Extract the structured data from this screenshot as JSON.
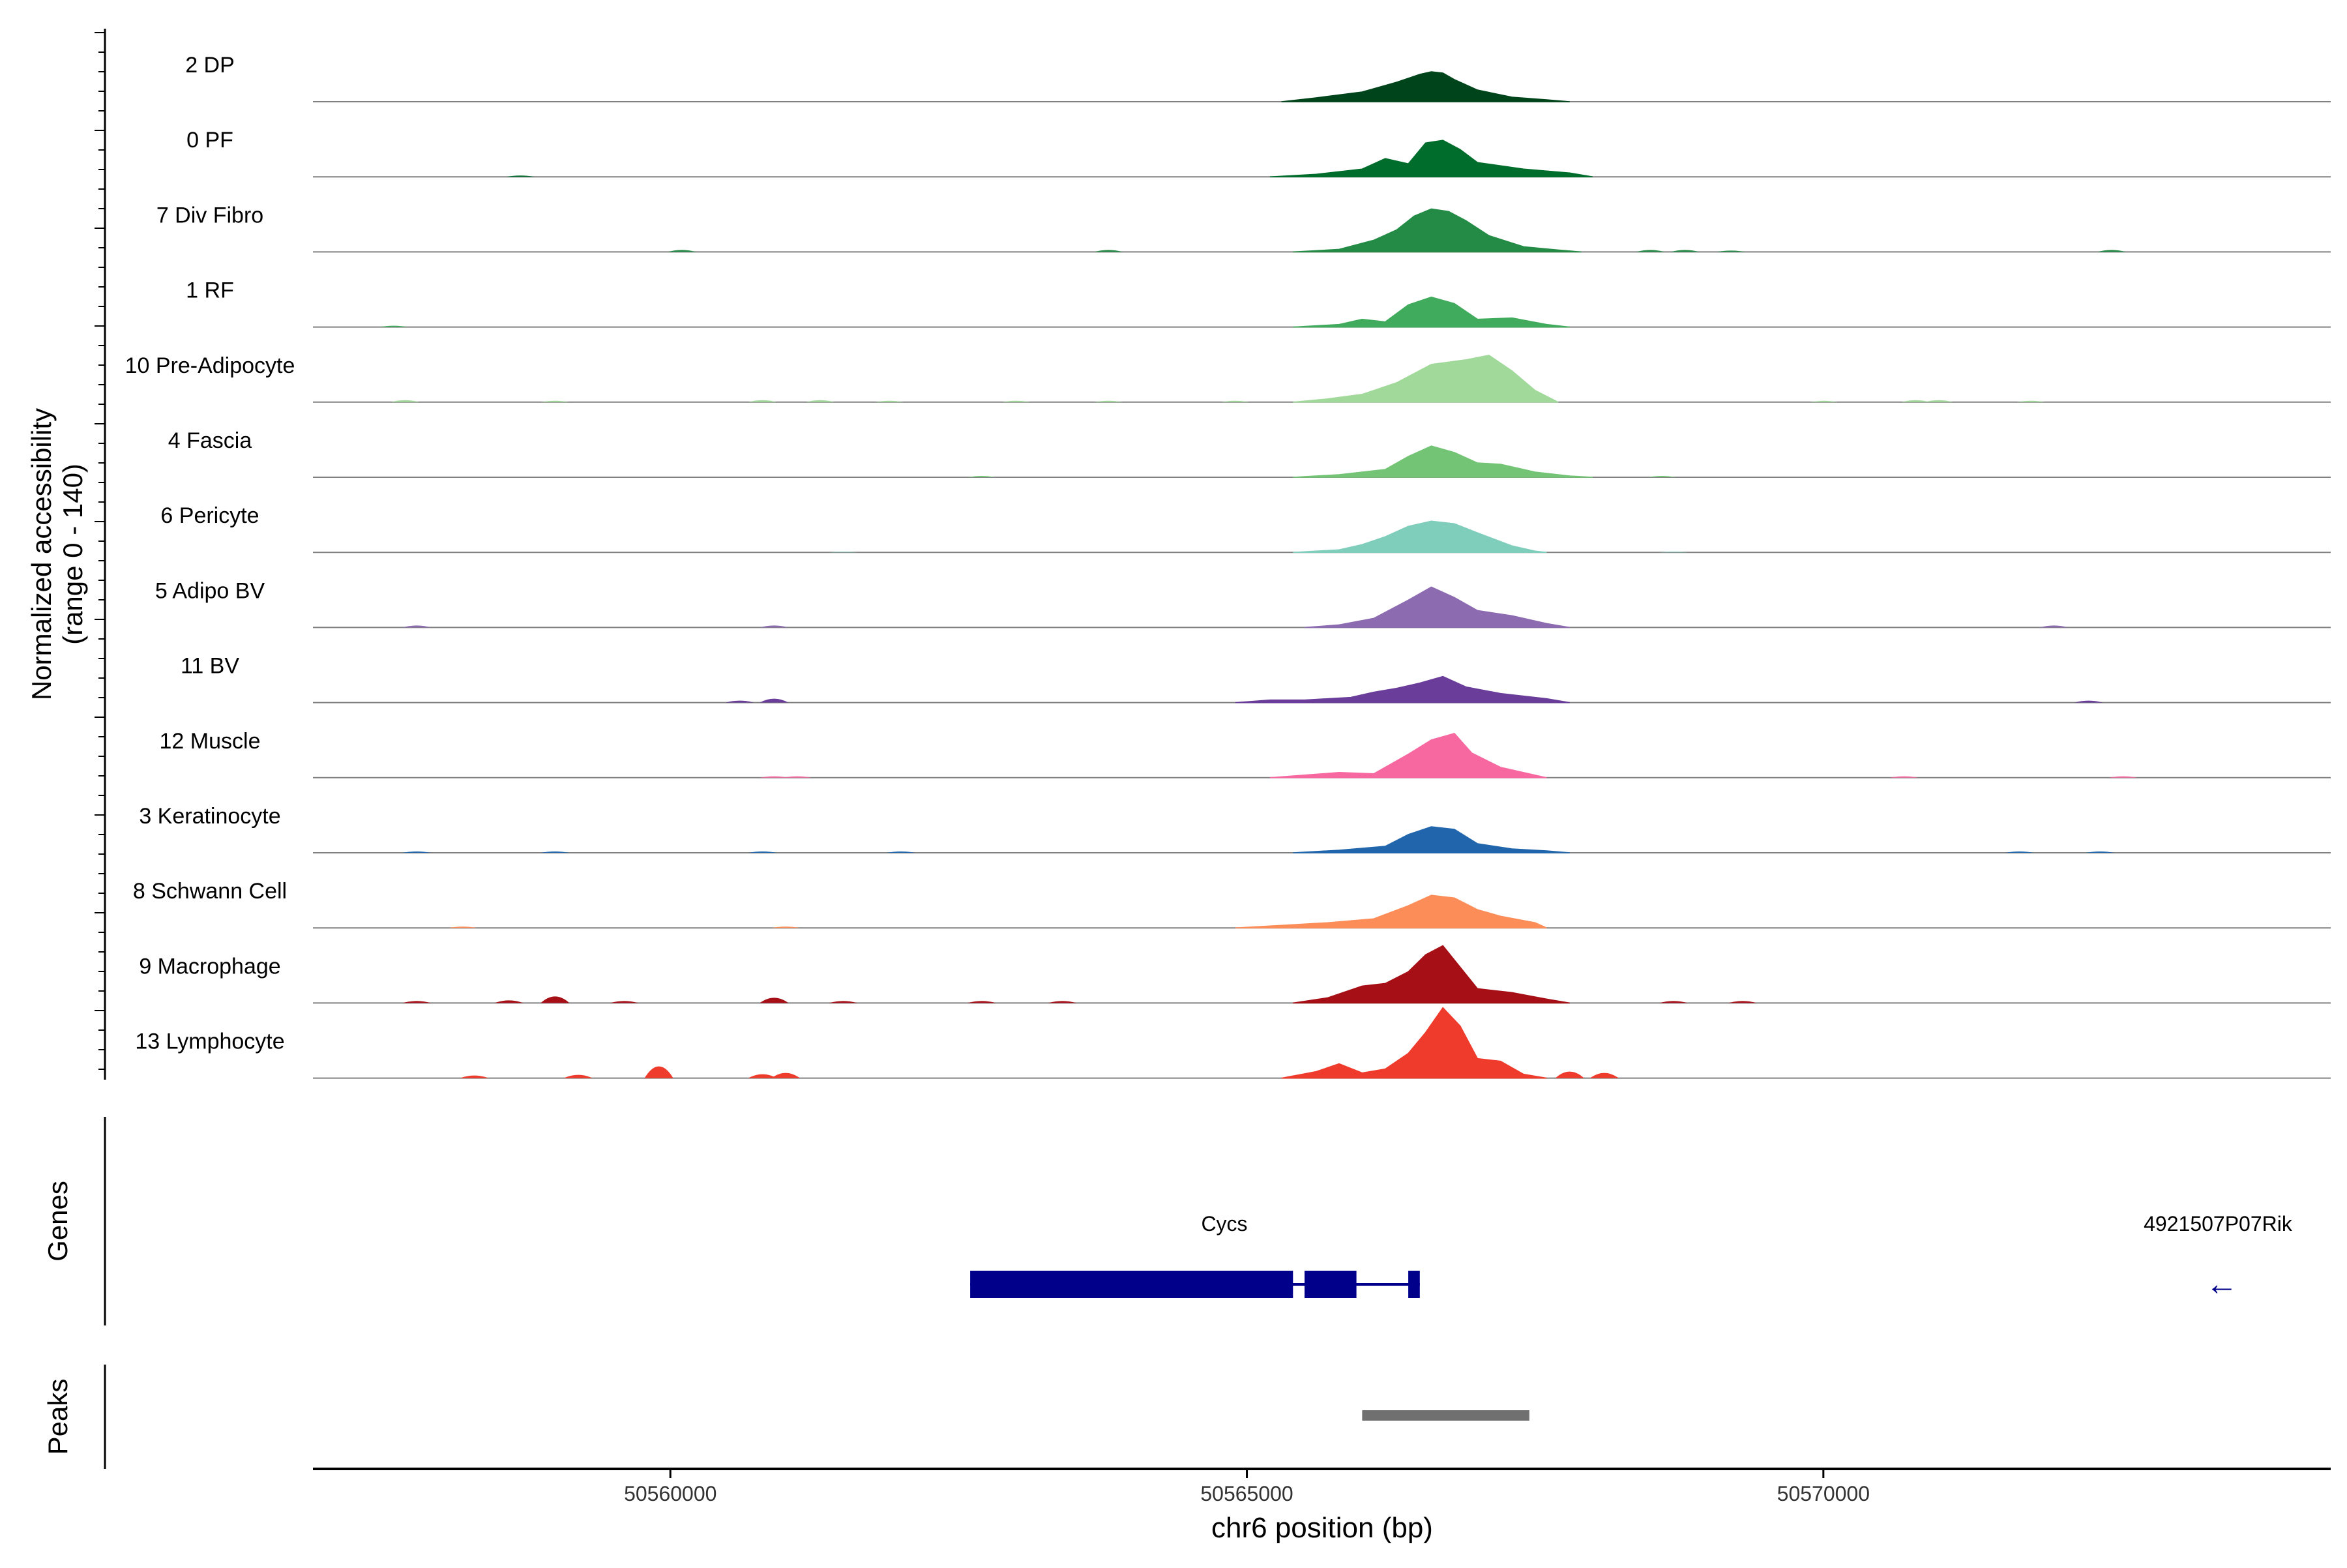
{
  "chart_data": {
    "type": "area",
    "title": "",
    "y_axis_label_line1": "Normalized accessibility",
    "y_axis_label_line2": "(range 0 - 140)",
    "y_range": [
      0,
      140
    ],
    "xlabel": "chr6 position (bp)",
    "x_range": [
      50556900,
      50574400
    ],
    "x_ticks": [
      {
        "value": 50560000,
        "label": "50560000"
      },
      {
        "value": 50565000,
        "label": "50565000"
      },
      {
        "value": 50570000,
        "label": "50570000"
      }
    ],
    "tracks": [
      {
        "name": "2 DP",
        "color": "#00441b",
        "peak": [
          [
            50565300,
            0
          ],
          [
            50565600,
            6
          ],
          [
            50566000,
            15
          ],
          [
            50566300,
            30
          ],
          [
            50566500,
            42
          ],
          [
            50566600,
            46
          ],
          [
            50566700,
            44
          ],
          [
            50566800,
            34
          ],
          [
            50567000,
            18
          ],
          [
            50567300,
            7
          ],
          [
            50567600,
            3
          ],
          [
            50567800,
            0
          ]
        ],
        "minor": []
      },
      {
        "name": "0 PF",
        "color": "#006d2c",
        "peak": [
          [
            50565200,
            0
          ],
          [
            50565600,
            4
          ],
          [
            50566000,
            12
          ],
          [
            50566200,
            28
          ],
          [
            50566400,
            20
          ],
          [
            50566550,
            52
          ],
          [
            50566700,
            56
          ],
          [
            50566850,
            42
          ],
          [
            50567000,
            22
          ],
          [
            50567400,
            12
          ],
          [
            50567800,
            6
          ],
          [
            50568000,
            0
          ]
        ],
        "minor": [
          [
            50558700,
            2
          ]
        ]
      },
      {
        "name": "7 Div Fibro",
        "color": "#238b45",
        "peak": [
          [
            50565400,
            0
          ],
          [
            50565800,
            4
          ],
          [
            50566100,
            18
          ],
          [
            50566300,
            34
          ],
          [
            50566450,
            55
          ],
          [
            50566600,
            66
          ],
          [
            50566750,
            62
          ],
          [
            50566900,
            48
          ],
          [
            50567100,
            25
          ],
          [
            50567400,
            8
          ],
          [
            50567700,
            3
          ],
          [
            50567900,
            0
          ]
        ],
        "minor": [
          [
            50560100,
            3
          ],
          [
            50563800,
            3
          ],
          [
            50568500,
            3
          ],
          [
            50568800,
            3
          ],
          [
            50569200,
            2
          ],
          [
            50572500,
            3
          ]
        ]
      },
      {
        "name": "1 RF",
        "color": "#41ab5d",
        "peak": [
          [
            50565400,
            0
          ],
          [
            50565800,
            4
          ],
          [
            50566000,
            12
          ],
          [
            50566200,
            8
          ],
          [
            50566400,
            34
          ],
          [
            50566600,
            46
          ],
          [
            50566800,
            36
          ],
          [
            50567000,
            12
          ],
          [
            50567300,
            14
          ],
          [
            50567600,
            4
          ],
          [
            50567800,
            0
          ]
        ],
        "minor": [
          [
            50557600,
            2
          ]
        ]
      },
      {
        "name": "10 Pre-Adipocyte",
        "color": "#a1d99b",
        "peak": [
          [
            50565400,
            0
          ],
          [
            50565700,
            5
          ],
          [
            50566000,
            12
          ],
          [
            50566300,
            30
          ],
          [
            50566600,
            58
          ],
          [
            50566900,
            65
          ],
          [
            50567100,
            72
          ],
          [
            50567300,
            48
          ],
          [
            50567500,
            18
          ],
          [
            50567700,
            0
          ]
        ],
        "minor": [
          [
            50557700,
            3
          ],
          [
            50559000,
            2
          ],
          [
            50560800,
            3
          ],
          [
            50561300,
            3
          ],
          [
            50561900,
            2
          ],
          [
            50563000,
            2
          ],
          [
            50563800,
            2
          ],
          [
            50564900,
            2
          ],
          [
            50570000,
            2
          ],
          [
            50570800,
            3
          ],
          [
            50571000,
            3
          ],
          [
            50571800,
            2
          ]
        ]
      },
      {
        "name": "4 Fascia",
        "color": "#74c476",
        "peak": [
          [
            50565400,
            0
          ],
          [
            50565800,
            4
          ],
          [
            50566200,
            12
          ],
          [
            50566400,
            32
          ],
          [
            50566600,
            48
          ],
          [
            50566800,
            38
          ],
          [
            50567000,
            22
          ],
          [
            50567200,
            20
          ],
          [
            50567500,
            8
          ],
          [
            50567800,
            2
          ],
          [
            50568000,
            0
          ]
        ],
        "minor": [
          [
            50562700,
            2
          ],
          [
            50568600,
            2
          ]
        ]
      },
      {
        "name": "6 Pericyte",
        "color": "#7fcdbb",
        "peak": [
          [
            50565400,
            0
          ],
          [
            50565800,
            4
          ],
          [
            50566000,
            12
          ],
          [
            50566200,
            24
          ],
          [
            50566400,
            40
          ],
          [
            50566600,
            48
          ],
          [
            50566800,
            44
          ],
          [
            50567000,
            30
          ],
          [
            50567300,
            10
          ],
          [
            50567500,
            2
          ],
          [
            50567600,
            0
          ]
        ],
        "minor": [
          [
            50561500,
            1
          ],
          [
            50568700,
            1
          ]
        ]
      },
      {
        "name": "5 Adipo BV",
        "color": "#8c6bb1",
        "peak": [
          [
            50565500,
            0
          ],
          [
            50565800,
            4
          ],
          [
            50566100,
            14
          ],
          [
            50566400,
            42
          ],
          [
            50566600,
            62
          ],
          [
            50566800,
            46
          ],
          [
            50567000,
            26
          ],
          [
            50567300,
            18
          ],
          [
            50567600,
            6
          ],
          [
            50567800,
            0
          ]
        ],
        "minor": [
          [
            50557800,
            3
          ],
          [
            50560900,
            3
          ],
          [
            50572000,
            3
          ]
        ]
      },
      {
        "name": "11 BV",
        "color": "#6a3d9a",
        "peak": [
          [
            50564900,
            0
          ],
          [
            50565200,
            4
          ],
          [
            50565500,
            4
          ],
          [
            50565900,
            8
          ],
          [
            50566100,
            16
          ],
          [
            50566300,
            22
          ],
          [
            50566500,
            30
          ],
          [
            50566700,
            40
          ],
          [
            50566900,
            24
          ],
          [
            50567200,
            14
          ],
          [
            50567600,
            6
          ],
          [
            50567800,
            0
          ]
        ],
        "minor": [
          [
            50560600,
            3
          ],
          [
            50560900,
            6
          ],
          [
            50572300,
            3
          ]
        ]
      },
      {
        "name": "12 Muscle",
        "color": "#f768a1",
        "peak": [
          [
            50565200,
            0
          ],
          [
            50565500,
            4
          ],
          [
            50565800,
            8
          ],
          [
            50566100,
            6
          ],
          [
            50566400,
            36
          ],
          [
            50566600,
            58
          ],
          [
            50566800,
            68
          ],
          [
            50566950,
            38
          ],
          [
            50567200,
            16
          ],
          [
            50567400,
            8
          ],
          [
            50567600,
            0
          ]
        ],
        "minor": [
          [
            50560900,
            2
          ],
          [
            50561100,
            2
          ],
          [
            50570700,
            2
          ],
          [
            50572600,
            2
          ]
        ]
      },
      {
        "name": "3 Keratinocyte",
        "color": "#2166ac",
        "peak": [
          [
            50565400,
            0
          ],
          [
            50565800,
            4
          ],
          [
            50566200,
            10
          ],
          [
            50566400,
            28
          ],
          [
            50566600,
            40
          ],
          [
            50566800,
            36
          ],
          [
            50567000,
            14
          ],
          [
            50567300,
            6
          ],
          [
            50567600,
            3
          ],
          [
            50567800,
            0
          ]
        ],
        "minor": [
          [
            50557800,
            2
          ],
          [
            50559000,
            2
          ],
          [
            50560800,
            2
          ],
          [
            50562000,
            2
          ],
          [
            50571700,
            2
          ],
          [
            50572400,
            2
          ]
        ]
      },
      {
        "name": "8 Schwann Cell",
        "color": "#fc8d59",
        "peak": [
          [
            50564900,
            0
          ],
          [
            50565300,
            4
          ],
          [
            50565700,
            8
          ],
          [
            50566100,
            14
          ],
          [
            50566400,
            34
          ],
          [
            50566600,
            50
          ],
          [
            50566800,
            46
          ],
          [
            50567000,
            28
          ],
          [
            50567200,
            18
          ],
          [
            50567500,
            8
          ],
          [
            50567600,
            0
          ]
        ],
        "minor": [
          [
            50558200,
            2
          ],
          [
            50561000,
            2
          ]
        ]
      },
      {
        "name": "9 Macrophage",
        "color": "#a50f15",
        "peak": [
          [
            50565400,
            0
          ],
          [
            50565700,
            8
          ],
          [
            50566000,
            26
          ],
          [
            50566200,
            30
          ],
          [
            50566400,
            48
          ],
          [
            50566550,
            74
          ],
          [
            50566700,
            88
          ],
          [
            50566850,
            55
          ],
          [
            50567000,
            22
          ],
          [
            50567300,
            16
          ],
          [
            50567600,
            6
          ],
          [
            50567800,
            0
          ]
        ],
        "minor": [
          [
            50557800,
            3
          ],
          [
            50558600,
            4
          ],
          [
            50559000,
            10
          ],
          [
            50559600,
            3
          ],
          [
            50560900,
            8
          ],
          [
            50561500,
            3
          ],
          [
            50562700,
            3
          ],
          [
            50563400,
            3
          ],
          [
            50568700,
            3
          ],
          [
            50569300,
            3
          ]
        ]
      },
      {
        "name": "13 Lymphocyte",
        "color": "#ef3b2c",
        "peak": [
          [
            50565300,
            0
          ],
          [
            50565600,
            10
          ],
          [
            50565800,
            22
          ],
          [
            50566000,
            8
          ],
          [
            50566200,
            14
          ],
          [
            50566400,
            38
          ],
          [
            50566550,
            70
          ],
          [
            50566700,
            108
          ],
          [
            50566850,
            80
          ],
          [
            50567000,
            30
          ],
          [
            50567200,
            26
          ],
          [
            50567400,
            6
          ],
          [
            50567600,
            0
          ]
        ],
        "minor": [
          [
            50558300,
            4
          ],
          [
            50559200,
            5
          ],
          [
            50559900,
            18
          ],
          [
            50560800,
            6
          ],
          [
            50561000,
            8
          ],
          [
            50567800,
            10
          ],
          [
            50568100,
            8
          ]
        ]
      }
    ],
    "genes": {
      "axis_label": "Genes",
      "strand_color": "#00008b",
      "items": [
        {
          "name": "Cycs",
          "start": 50562600,
          "end": 50566500,
          "exons": [
            [
              50562600,
              50565400
            ],
            [
              50565500,
              50565950
            ],
            [
              50566400,
              50566500
            ]
          ]
        },
        {
          "name": "4921507P07Rik",
          "arrow": "←"
        }
      ]
    },
    "peaks": {
      "axis_label": "Peaks",
      "color": "#707070",
      "regions": [
        [
          50566000,
          50567450
        ]
      ]
    }
  }
}
